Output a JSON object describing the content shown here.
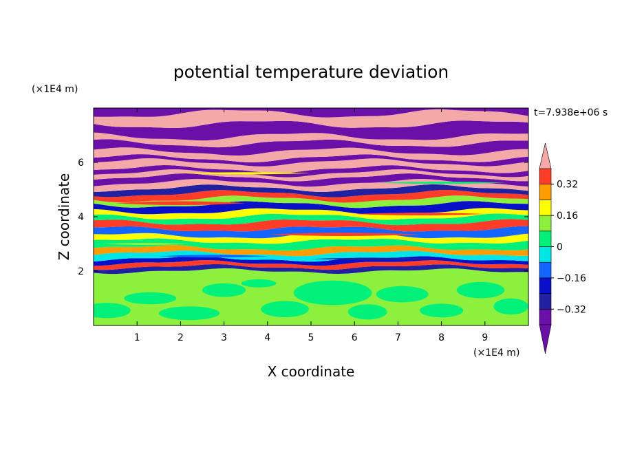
{
  "chart_data": {
    "type": "heatmap",
    "title": "potential temperature deviation",
    "xlabel": "X coordinate",
    "ylabel": "Z coordinate",
    "x_unit": "(×1E4 m)",
    "y_unit": "(×1E4 m)",
    "time_label": "t=7.938e+06 s",
    "xlim": [
      0,
      10
    ],
    "ylim": [
      0,
      8
    ],
    "x_ticks": [
      "1",
      "2",
      "3",
      "4",
      "5",
      "6",
      "7",
      "8",
      "9"
    ],
    "y_ticks": [
      "2",
      "4",
      "6"
    ],
    "colorbar": {
      "levels": [
        -0.4,
        -0.32,
        -0.24,
        -0.16,
        -0.08,
        0,
        0.08,
        0.16,
        0.24,
        0.32,
        0.4
      ],
      "colors": [
        "#6a0fa8",
        "#2020a0",
        "#0a10c8",
        "#1464ff",
        "#00e6e6",
        "#00f07a",
        "#8cf03c",
        "#ffff00",
        "#ff9c00",
        "#ff3c28",
        "#f4a8a8"
      ],
      "tick_labels": [
        "0.32",
        "0.16",
        "0",
        "−0.16",
        "−0.32"
      ],
      "tick_values": [
        0.32,
        0.16,
        0,
        -0.16,
        -0.32
      ]
    },
    "bands": [
      {
        "z0": 0.0,
        "z1": 2.0,
        "value": 0.04
      },
      {
        "z0": 2.0,
        "z1": 2.15,
        "value": -0.38
      },
      {
        "z0": 2.15,
        "z1": 2.3,
        "value": 0.3
      },
      {
        "z0": 2.3,
        "z1": 2.45,
        "value": -0.3
      },
      {
        "z0": 2.45,
        "z1": 2.65,
        "value": -0.1
      },
      {
        "z0": 2.65,
        "z1": 2.85,
        "value": 0.22
      },
      {
        "z0": 2.85,
        "z1": 3.1,
        "value": -0.08
      },
      {
        "z0": 3.1,
        "z1": 3.3,
        "value": 0.12
      },
      {
        "z0": 3.3,
        "z1": 3.55,
        "value": -0.2
      },
      {
        "z0": 3.55,
        "z1": 3.8,
        "value": 0.3
      },
      {
        "z0": 3.8,
        "z1": 4.0,
        "value": -0.08
      },
      {
        "z0": 4.0,
        "z1": 4.2,
        "value": 0.14
      },
      {
        "z0": 4.2,
        "z1": 4.45,
        "value": -0.28
      },
      {
        "z0": 4.45,
        "z1": 4.65,
        "value": 0.05
      },
      {
        "z0": 4.65,
        "z1": 4.85,
        "value": 0.3
      },
      {
        "z0": 4.85,
        "z1": 5.05,
        "value": -0.38
      },
      {
        "z0": 5.05,
        "z1": 5.25,
        "value": 0.4
      },
      {
        "z0": 5.25,
        "z1": 5.45,
        "value": -0.42
      },
      {
        "z0": 5.45,
        "z1": 5.6,
        "value": 0.4
      },
      {
        "z0": 5.6,
        "z1": 5.75,
        "value": -0.42
      },
      {
        "z0": 5.75,
        "z1": 6.0,
        "value": 0.4
      },
      {
        "z0": 6.0,
        "z1": 6.15,
        "value": -0.42
      },
      {
        "z0": 6.15,
        "z1": 6.4,
        "value": 0.4
      },
      {
        "z0": 6.4,
        "z1": 6.7,
        "value": -0.42
      },
      {
        "z0": 6.7,
        "z1": 6.95,
        "value": 0.4
      },
      {
        "z0": 6.95,
        "z1": 7.4,
        "value": -0.42
      },
      {
        "z0": 7.4,
        "z1": 7.8,
        "value": 0.4
      },
      {
        "z0": 7.8,
        "z1": 8.0,
        "value": -0.42
      }
    ]
  }
}
